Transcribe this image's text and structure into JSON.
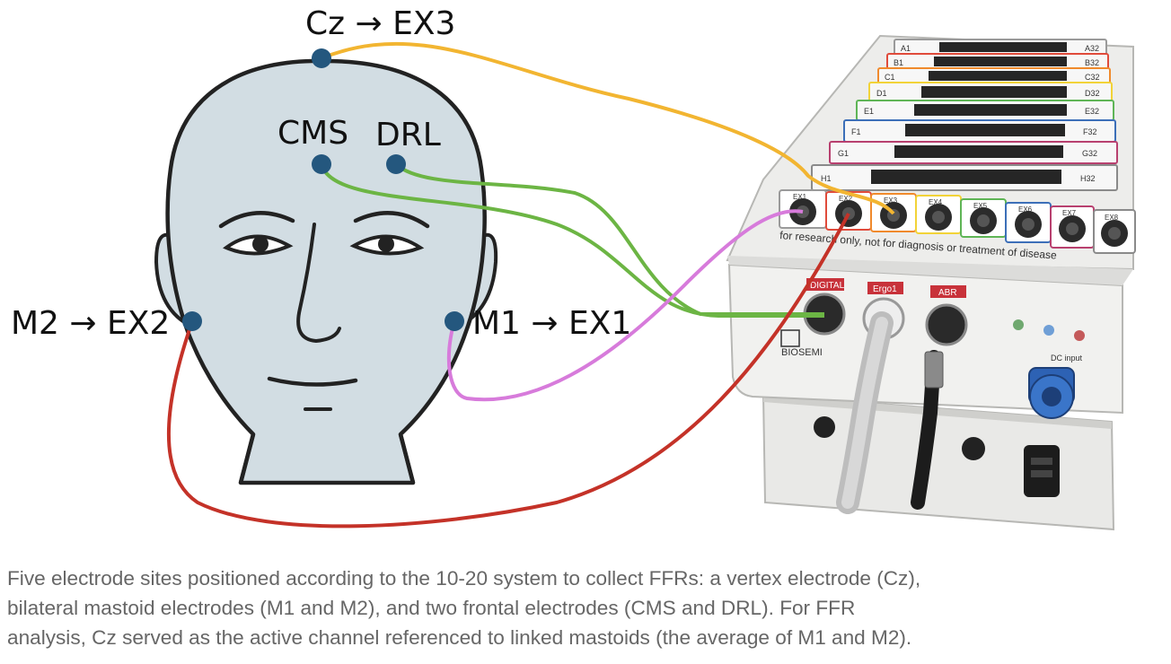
{
  "diagram": {
    "labels": {
      "cz": "Cz → EX3",
      "cms": "CMS",
      "drl": "DRL",
      "m2": "M2 → EX2",
      "m1": "M1 → EX1"
    },
    "device": {
      "row_labels_left": [
        "A1",
        "B1",
        "C1",
        "D1",
        "E1",
        "F1",
        "G1",
        "H1"
      ],
      "row_labels_right": [
        "A32",
        "B32",
        "C32",
        "D32",
        "E32",
        "F32",
        "G32",
        "H32"
      ],
      "ex_ports": [
        "EX1",
        "EX2",
        "EX3",
        "EX4",
        "EX5",
        "EX6",
        "EX7",
        "EX8"
      ],
      "disclaimer": "for research only, not for diagnosis or treatment of disease",
      "front_labels": [
        "DIGITAL",
        "Ergo1",
        "ABR"
      ],
      "brand": "BIOSEMI",
      "dc_label": "DC input"
    },
    "colors": {
      "cz_wire": "#f2b531",
      "cms_drl_wire": "#6cb544",
      "m1_wire": "#d77bdb",
      "m2_wire": "#c43228",
      "electrode": "#24577e",
      "head_fill": "#d2dde3"
    }
  },
  "caption": {
    "lines": [
      "Five electrode sites positioned according to the 10-20 system to collect FFRs: a vertex electrode (Cz),",
      "bilateral mastoid electrodes (M1 and M2), and two frontal electrodes (CMS and DRL). For FFR",
      "analysis, Cz served as the active channel referenced to linked mastoids (the average of M1 and M2)."
    ]
  }
}
